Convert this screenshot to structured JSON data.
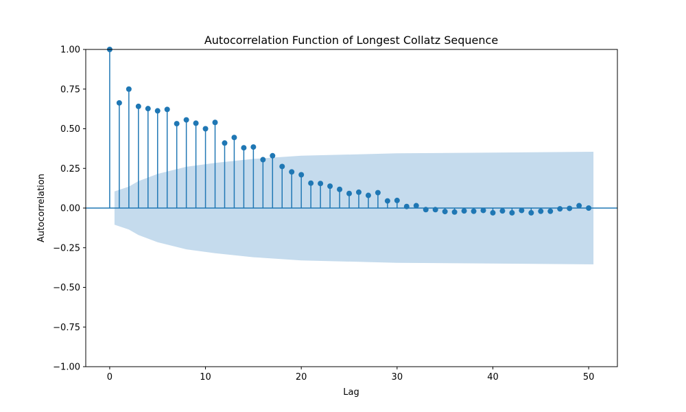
{
  "chart_data": {
    "type": "stem",
    "title": "Autocorrelation Function of Longest Collatz Sequence",
    "xlabel": "Lag",
    "ylabel": "Autocorrelation",
    "xlim": [
      -2.5,
      53
    ],
    "ylim": [
      -1.0,
      1.0
    ],
    "x_ticks": [
      0,
      10,
      20,
      30,
      40,
      50
    ],
    "x_tick_labels": [
      "0",
      "10",
      "20",
      "30",
      "40",
      "50"
    ],
    "y_ticks": [
      -1.0,
      -0.75,
      -0.5,
      -0.25,
      0.0,
      0.25,
      0.5,
      0.75,
      1.0
    ],
    "y_tick_labels": [
      "−1.00",
      "−0.75",
      "−0.50",
      "−0.25",
      "0.00",
      "0.25",
      "0.50",
      "0.75",
      "1.00"
    ],
    "grid": false,
    "colors": {
      "stem": "#1f77b4",
      "confidence_band": "#c5dbed",
      "axes": "#000000"
    },
    "lags": [
      0,
      1,
      2,
      3,
      4,
      5,
      6,
      7,
      8,
      9,
      10,
      11,
      12,
      13,
      14,
      15,
      16,
      17,
      18,
      19,
      20,
      21,
      22,
      23,
      24,
      25,
      26,
      27,
      28,
      29,
      30,
      31,
      32,
      33,
      34,
      35,
      36,
      37,
      38,
      39,
      40,
      41,
      42,
      43,
      44,
      45,
      46,
      47,
      48,
      49,
      50
    ],
    "acf": [
      1.0,
      0.663,
      0.75,
      0.641,
      0.627,
      0.613,
      0.622,
      0.532,
      0.556,
      0.535,
      0.5,
      0.54,
      0.41,
      0.445,
      0.38,
      0.385,
      0.305,
      0.33,
      0.262,
      0.228,
      0.21,
      0.157,
      0.155,
      0.138,
      0.118,
      0.092,
      0.1,
      0.08,
      0.097,
      0.045,
      0.048,
      0.01,
      0.015,
      -0.01,
      -0.01,
      -0.022,
      -0.025,
      -0.018,
      -0.02,
      -0.015,
      -0.03,
      -0.018,
      -0.03,
      -0.015,
      -0.03,
      -0.02,
      -0.02,
      -0.005,
      -0.002,
      0.015,
      0.0
    ],
    "confidence_band": {
      "lags": [
        0.5,
        2,
        3,
        5,
        8,
        11,
        15,
        20,
        30,
        50.5
      ],
      "upper": [
        0.105,
        0.135,
        0.17,
        0.215,
        0.26,
        0.285,
        0.31,
        0.33,
        0.345,
        0.355
      ],
      "lower": [
        -0.105,
        -0.135,
        -0.17,
        -0.215,
        -0.26,
        -0.285,
        -0.31,
        -0.33,
        -0.345,
        -0.355
      ]
    }
  }
}
